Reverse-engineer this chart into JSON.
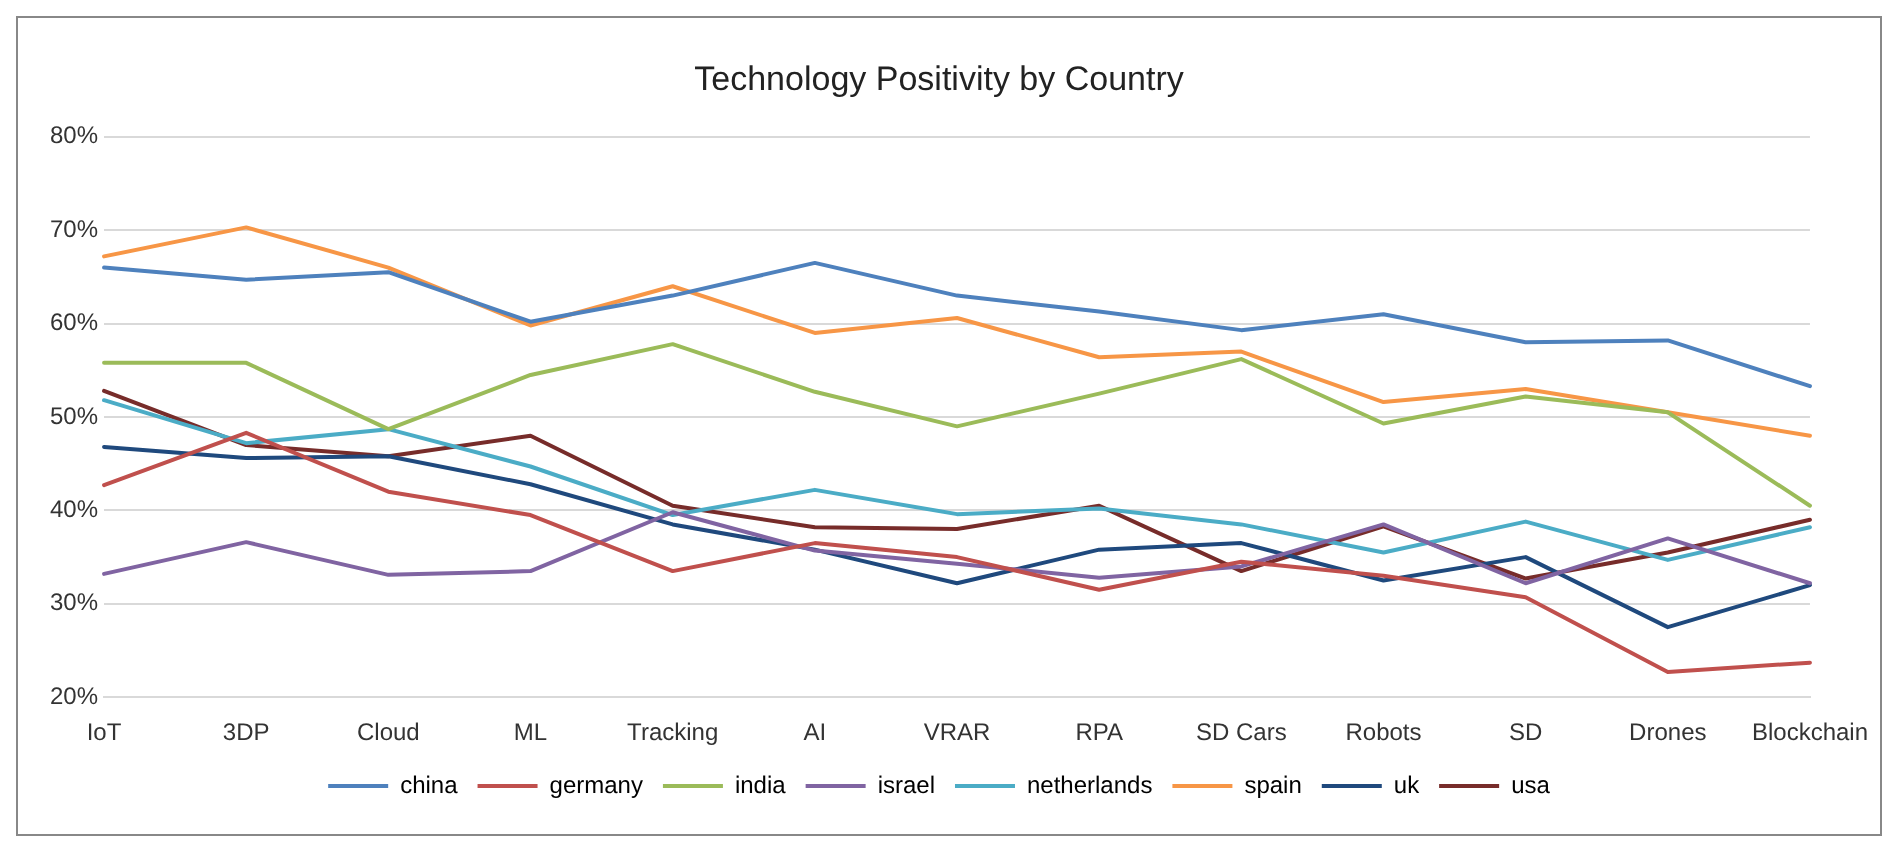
{
  "chart_data": {
    "type": "line",
    "title": "Technology Positivity by Country",
    "categories": [
      "IoT",
      "3DP",
      "Cloud",
      "ML",
      "Tracking",
      "AI",
      "VRAR",
      "RPA",
      "SD Cars",
      "Robots",
      "SD",
      "Drones",
      "Blockchain"
    ],
    "series": [
      {
        "name": "china",
        "color": "#4e81bd",
        "values": [
          66,
          64.7,
          65.5,
          60.2,
          63,
          66.5,
          63,
          61.3,
          59.3,
          61,
          58,
          58.2,
          53.3
        ]
      },
      {
        "name": "germany",
        "color": "#c0504d",
        "values": [
          42.7,
          48.3,
          42,
          39.5,
          33.5,
          36.5,
          35,
          31.5,
          34.5,
          33,
          30.7,
          22.7,
          23.7
        ]
      },
      {
        "name": "india",
        "color": "#9bbb59",
        "values": [
          55.8,
          55.8,
          48.7,
          54.5,
          57.8,
          52.7,
          49,
          52.5,
          56.2,
          49.3,
          52.2,
          50.5,
          40.5
        ]
      },
      {
        "name": "israel",
        "color": "#8064a2",
        "values": [
          33.2,
          36.6,
          33.1,
          33.5,
          39.8,
          35.7,
          34.3,
          32.8,
          34,
          38.5,
          32.2,
          37,
          32.2
        ]
      },
      {
        "name": "netherlands",
        "color": "#4bacc6",
        "values": [
          51.8,
          47.2,
          48.7,
          44.7,
          39.5,
          42.2,
          39.6,
          40.2,
          38.5,
          35.5,
          38.8,
          34.7,
          38.2
        ]
      },
      {
        "name": "spain",
        "color": "#f79646",
        "values": [
          67.2,
          70.3,
          66,
          59.8,
          64,
          59,
          60.6,
          56.4,
          57,
          51.6,
          53,
          50.5,
          48
        ]
      },
      {
        "name": "uk",
        "color": "#1f497d",
        "values": [
          46.8,
          45.6,
          45.8,
          42.8,
          38.5,
          35.8,
          32.2,
          35.8,
          36.5,
          32.5,
          35,
          27.5,
          32
        ]
      },
      {
        "name": "usa",
        "color": "#772c2a",
        "values": [
          52.8,
          47,
          45.8,
          48,
          40.5,
          38.2,
          38,
          40.5,
          33.5,
          38.3,
          32.7,
          35.5,
          39
        ]
      }
    ],
    "ylim": [
      20,
      80
    ],
    "yticks": [
      {
        "value": 20,
        "label": "20%"
      },
      {
        "value": 30,
        "label": "30%"
      },
      {
        "value": 40,
        "label": "40%"
      },
      {
        "value": 50,
        "label": "50%"
      },
      {
        "value": 60,
        "label": "60%"
      },
      {
        "value": 70,
        "label": "70%"
      },
      {
        "value": 80,
        "label": "80%"
      }
    ],
    "grid": "y",
    "legend": "bottom",
    "marker": "none",
    "line_style": "solid"
  }
}
